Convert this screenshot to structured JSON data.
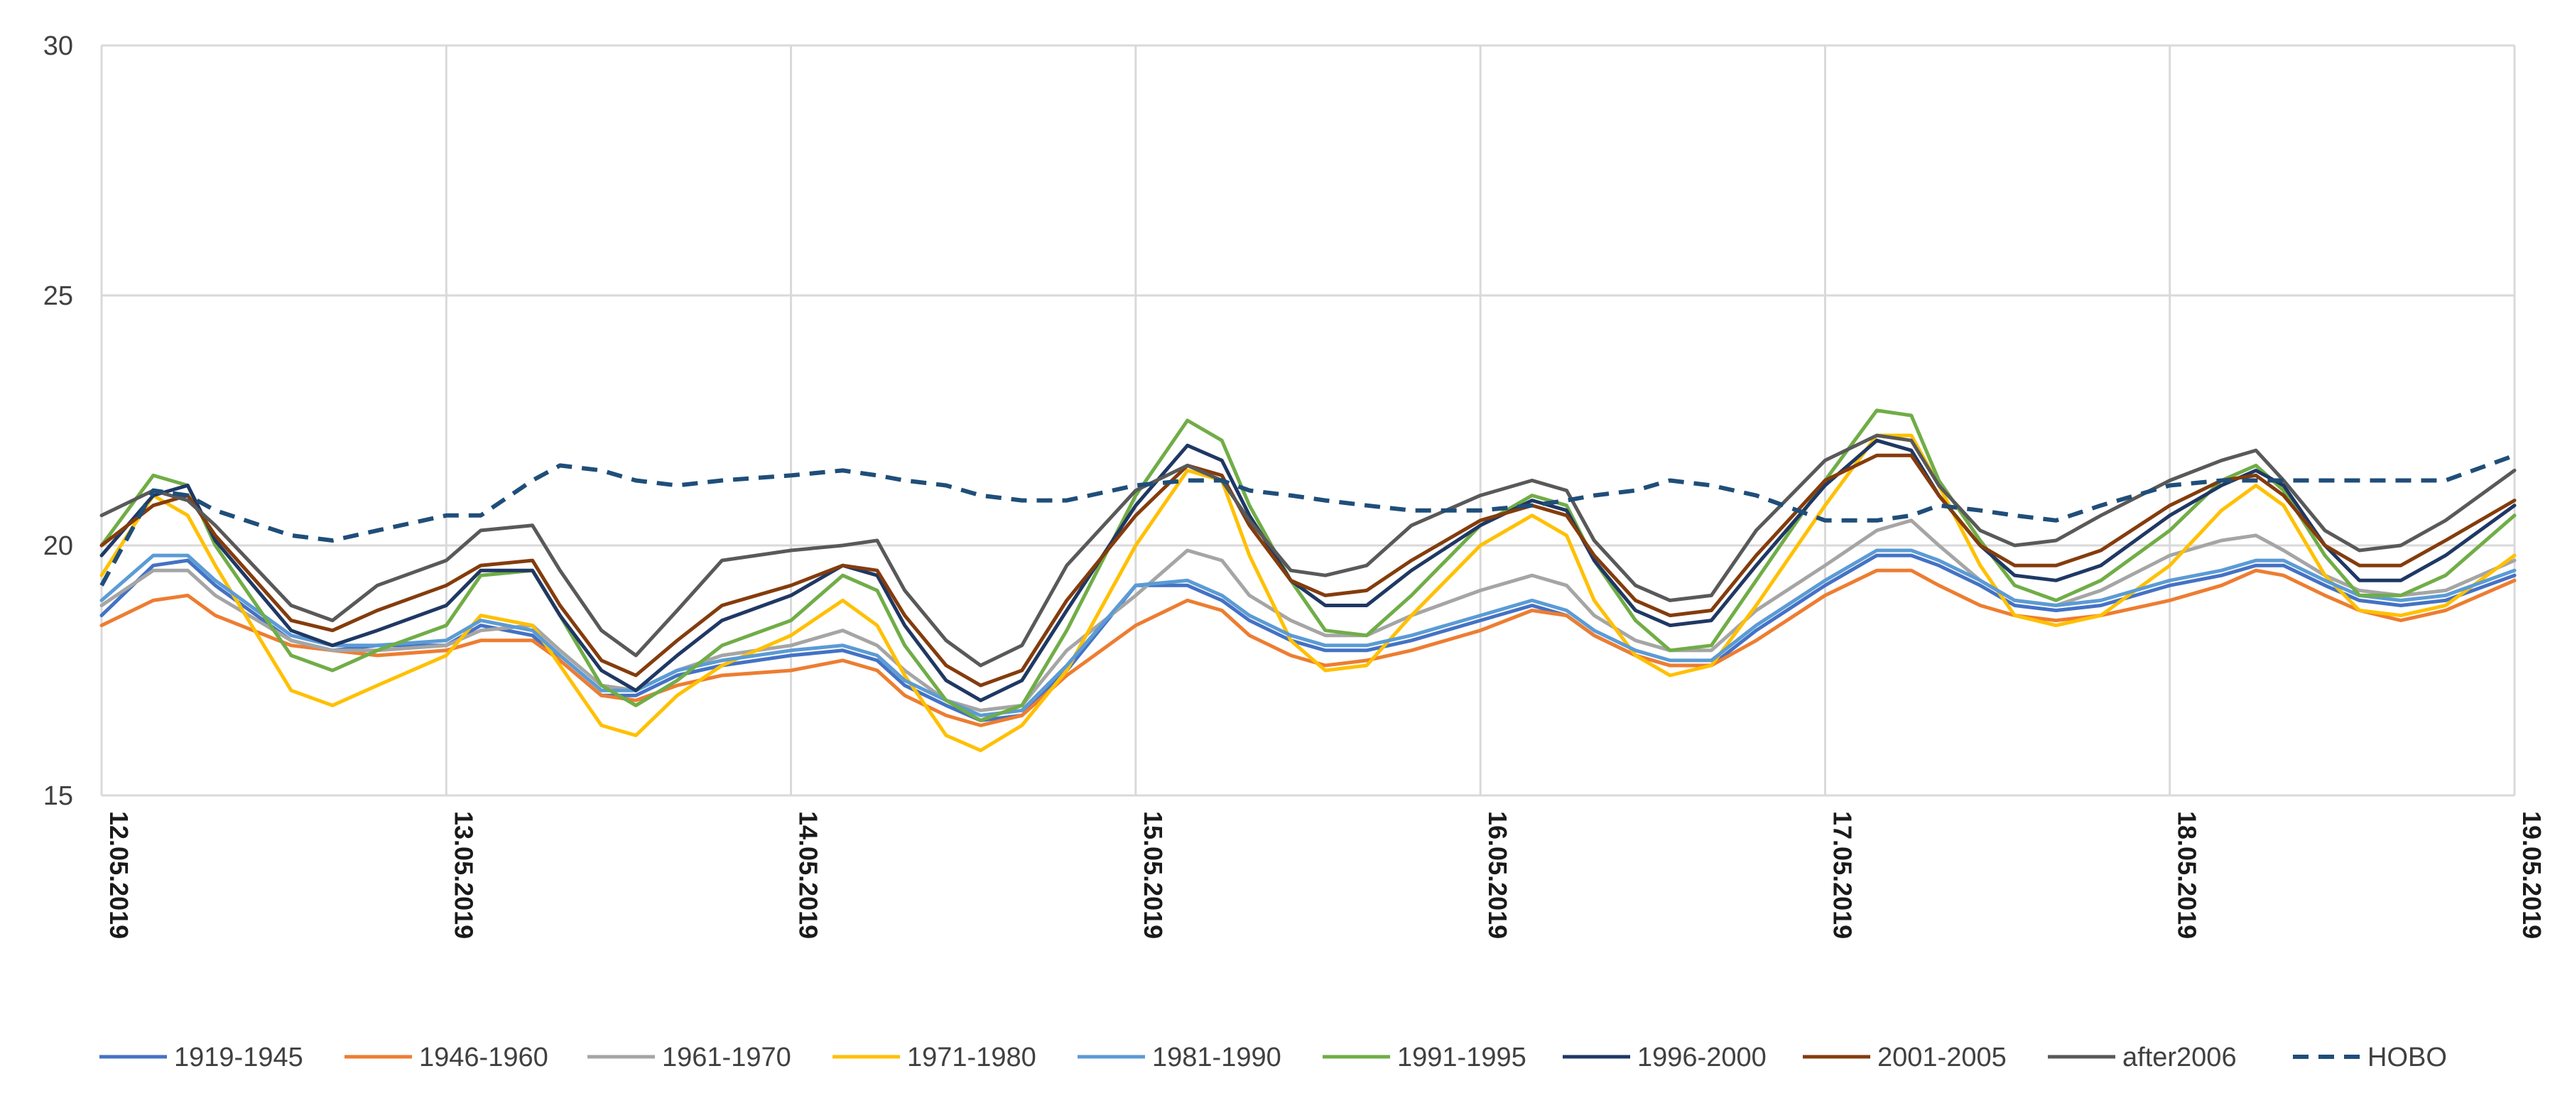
{
  "chart_data": {
    "type": "line",
    "title": "",
    "xlabel": "",
    "ylabel": "",
    "ylim": [
      15,
      30
    ],
    "yticks": [
      "15",
      "20",
      "25",
      "30"
    ],
    "xticks": [
      "12.05.2019",
      "13.05.2019",
      "14.05.2019",
      "15.05.2019",
      "16.05.2019",
      "17.05.2019",
      "18.05.2019",
      "19.05.2019"
    ],
    "x_days": [
      0,
      0.15,
      0.25,
      0.33,
      0.55,
      0.67,
      0.8,
      1,
      1.1,
      1.25,
      1.33,
      1.45,
      1.55,
      1.67,
      1.8,
      2,
      2.15,
      2.25,
      2.33,
      2.45,
      2.55,
      2.67,
      2.8,
      3,
      3.15,
      3.25,
      3.33,
      3.45,
      3.55,
      3.67,
      3.8,
      4,
      4.15,
      4.25,
      4.33,
      4.45,
      4.55,
      4.67,
      4.8,
      5,
      5.15,
      5.25,
      5.33,
      5.45,
      5.55,
      5.67,
      5.8,
      6,
      6.15,
      6.25,
      6.33,
      6.45,
      6.55,
      6.67,
      6.8,
      7
    ],
    "grid": true,
    "legend_position": "bottom",
    "series": [
      {
        "name": "1919-1945",
        "color": "#4472c4",
        "dash": false,
        "values": [
          18.6,
          19.6,
          19.7,
          19.2,
          18.1,
          17.9,
          18.0,
          18.0,
          18.4,
          18.2,
          17.7,
          17.0,
          17.0,
          17.4,
          17.6,
          17.8,
          17.9,
          17.7,
          17.2,
          16.8,
          16.5,
          16.6,
          17.5,
          19.2,
          19.2,
          18.9,
          18.5,
          18.1,
          17.9,
          17.9,
          18.1,
          18.5,
          18.8,
          18.6,
          18.2,
          17.8,
          17.6,
          17.6,
          18.3,
          19.2,
          19.8,
          19.8,
          19.6,
          19.2,
          18.8,
          18.7,
          18.8,
          19.2,
          19.4,
          19.6,
          19.6,
          19.2,
          18.9,
          18.8,
          18.9,
          19.4
        ]
      },
      {
        "name": "1946-1960",
        "color": "#ed7d31",
        "dash": false,
        "values": [
          18.4,
          18.9,
          19.0,
          18.6,
          18.0,
          17.9,
          17.8,
          17.9,
          18.1,
          18.1,
          17.7,
          17.0,
          16.9,
          17.2,
          17.4,
          17.5,
          17.7,
          17.5,
          17.0,
          16.6,
          16.4,
          16.6,
          17.4,
          18.4,
          18.9,
          18.7,
          18.2,
          17.8,
          17.6,
          17.7,
          17.9,
          18.3,
          18.7,
          18.6,
          18.2,
          17.8,
          17.6,
          17.6,
          18.1,
          19.0,
          19.5,
          19.5,
          19.2,
          18.8,
          18.6,
          18.5,
          18.6,
          18.9,
          19.2,
          19.5,
          19.4,
          19.0,
          18.7,
          18.5,
          18.7,
          19.3
        ]
      },
      {
        "name": "1961-1970",
        "color": "#a5a5a5",
        "dash": false,
        "values": [
          18.8,
          19.5,
          19.5,
          19.0,
          18.1,
          17.9,
          17.9,
          18.0,
          18.3,
          18.4,
          17.9,
          17.2,
          17.1,
          17.5,
          17.8,
          18.0,
          18.3,
          18.0,
          17.5,
          16.9,
          16.7,
          16.8,
          17.9,
          19.0,
          19.9,
          19.7,
          19.0,
          18.5,
          18.2,
          18.2,
          18.6,
          19.1,
          19.4,
          19.2,
          18.6,
          18.1,
          17.9,
          17.9,
          18.7,
          19.6,
          20.3,
          20.5,
          20.0,
          19.3,
          18.9,
          18.8,
          19.1,
          19.8,
          20.1,
          20.2,
          19.9,
          19.4,
          19.1,
          19.0,
          19.1,
          19.7
        ]
      },
      {
        "name": "1971-1980",
        "color": "#ffc000",
        "dash": false,
        "values": [
          19.4,
          21.0,
          20.6,
          19.6,
          17.1,
          16.8,
          17.2,
          17.8,
          18.6,
          18.4,
          17.6,
          16.4,
          16.2,
          17.0,
          17.6,
          18.2,
          18.9,
          18.4,
          17.4,
          16.2,
          15.9,
          16.4,
          17.5,
          20.0,
          21.5,
          21.3,
          19.8,
          18.1,
          17.5,
          17.6,
          18.6,
          20.0,
          20.6,
          20.2,
          18.9,
          17.8,
          17.4,
          17.6,
          18.8,
          20.8,
          22.2,
          22.2,
          21.2,
          19.6,
          18.6,
          18.4,
          18.6,
          19.6,
          20.7,
          21.2,
          20.8,
          19.4,
          18.7,
          18.6,
          18.8,
          19.8
        ]
      },
      {
        "name": "1981-1990",
        "color": "#5b9bd5",
        "dash": false,
        "values": [
          18.9,
          19.8,
          19.8,
          19.3,
          18.2,
          18.0,
          18.0,
          18.1,
          18.5,
          18.3,
          17.8,
          17.1,
          17.1,
          17.5,
          17.7,
          17.9,
          18.0,
          17.8,
          17.3,
          16.9,
          16.6,
          16.7,
          17.6,
          19.2,
          19.3,
          19.0,
          18.6,
          18.2,
          18.0,
          18.0,
          18.2,
          18.6,
          18.9,
          18.7,
          18.3,
          17.9,
          17.7,
          17.7,
          18.4,
          19.3,
          19.9,
          19.9,
          19.7,
          19.3,
          18.9,
          18.8,
          18.9,
          19.3,
          19.5,
          19.7,
          19.7,
          19.3,
          19.0,
          18.9,
          19.0,
          19.5
        ]
      },
      {
        "name": "1991-1995",
        "color": "#70ad47",
        "dash": false,
        "values": [
          20.0,
          21.4,
          21.2,
          20.0,
          17.8,
          17.5,
          17.9,
          18.4,
          19.4,
          19.5,
          18.6,
          17.2,
          16.8,
          17.3,
          18.0,
          18.5,
          19.4,
          19.1,
          18.0,
          16.9,
          16.5,
          16.8,
          18.3,
          21.0,
          22.5,
          22.1,
          20.8,
          19.3,
          18.3,
          18.2,
          19.0,
          20.4,
          21.0,
          20.8,
          19.7,
          18.5,
          17.9,
          18.0,
          19.3,
          21.3,
          22.7,
          22.6,
          21.3,
          20.1,
          19.2,
          18.9,
          19.3,
          20.3,
          21.3,
          21.6,
          21.1,
          19.8,
          19.0,
          19.0,
          19.4,
          20.6
        ]
      },
      {
        "name": "1996-2000",
        "color": "#1f3864",
        "dash": false,
        "values": [
          19.8,
          21.0,
          21.2,
          20.1,
          18.3,
          18.0,
          18.3,
          18.8,
          19.5,
          19.5,
          18.6,
          17.5,
          17.1,
          17.8,
          18.5,
          19.0,
          19.6,
          19.4,
          18.4,
          17.3,
          16.9,
          17.3,
          18.7,
          20.8,
          22.0,
          21.7,
          20.6,
          19.3,
          18.8,
          18.8,
          19.5,
          20.4,
          20.9,
          20.7,
          19.7,
          18.7,
          18.4,
          18.5,
          19.6,
          21.2,
          22.1,
          21.9,
          21.0,
          20.0,
          19.4,
          19.3,
          19.6,
          20.6,
          21.2,
          21.5,
          21.2,
          20.0,
          19.3,
          19.3,
          19.8,
          20.8
        ]
      },
      {
        "name": "2001-2005",
        "color": "#843c0c",
        "dash": false,
        "values": [
          20.0,
          20.8,
          21.0,
          20.2,
          18.5,
          18.3,
          18.7,
          19.2,
          19.6,
          19.7,
          18.8,
          17.7,
          17.4,
          18.1,
          18.8,
          19.2,
          19.6,
          19.5,
          18.6,
          17.6,
          17.2,
          17.5,
          18.9,
          20.6,
          21.6,
          21.4,
          20.4,
          19.3,
          19.0,
          19.1,
          19.7,
          20.5,
          20.8,
          20.6,
          19.8,
          18.9,
          18.6,
          18.7,
          19.8,
          21.3,
          21.8,
          21.8,
          21.0,
          20.0,
          19.6,
          19.6,
          19.9,
          20.8,
          21.3,
          21.4,
          21.0,
          20.0,
          19.6,
          19.6,
          20.1,
          20.9
        ]
      },
      {
        "name": "after2006",
        "color": "#595959",
        "dash": false,
        "values": [
          20.6,
          21.1,
          20.9,
          20.4,
          18.8,
          18.5,
          19.2,
          19.7,
          20.3,
          20.4,
          19.5,
          18.3,
          17.8,
          18.7,
          19.7,
          19.9,
          20.0,
          20.1,
          19.1,
          18.1,
          17.6,
          18.0,
          19.6,
          21.1,
          21.6,
          21.3,
          20.5,
          19.5,
          19.4,
          19.6,
          20.4,
          21.0,
          21.3,
          21.1,
          20.1,
          19.2,
          18.9,
          19.0,
          20.3,
          21.7,
          22.2,
          22.1,
          21.2,
          20.3,
          20.0,
          20.1,
          20.6,
          21.3,
          21.7,
          21.9,
          21.3,
          20.3,
          19.9,
          20.0,
          20.5,
          21.5
        ]
      },
      {
        "name": "HOBO",
        "color": "#1f4e79",
        "dash": true,
        "values": [
          19.2,
          21.1,
          21.0,
          20.7,
          20.2,
          20.1,
          20.3,
          20.6,
          20.6,
          21.3,
          21.6,
          21.5,
          21.3,
          21.2,
          21.3,
          21.4,
          21.5,
          21.4,
          21.3,
          21.2,
          21.0,
          20.9,
          20.9,
          21.2,
          21.3,
          21.3,
          21.1,
          21.0,
          20.9,
          20.8,
          20.7,
          20.7,
          20.8,
          20.9,
          21.0,
          21.1,
          21.3,
          21.2,
          21.0,
          20.5,
          20.5,
          20.6,
          20.8,
          20.7,
          20.6,
          20.5,
          20.8,
          21.2,
          21.3,
          21.3,
          21.3,
          21.3,
          21.3,
          21.3,
          21.3,
          21.8
        ]
      }
    ]
  }
}
